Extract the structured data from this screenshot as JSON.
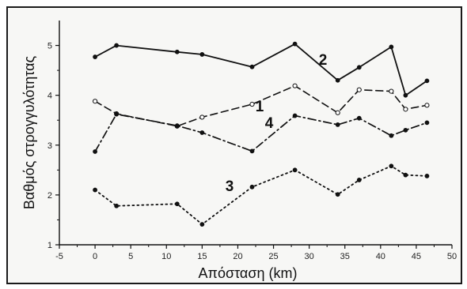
{
  "chart_data": {
    "type": "line",
    "title": "",
    "xlabel": "Απόσταση (km)",
    "ylabel": "Βαθμός στρογγυλότητας",
    "xlim": [
      -5,
      50
    ],
    "ylim": [
      1,
      5.5
    ],
    "xticks": [
      -5,
      0,
      5,
      10,
      15,
      20,
      25,
      30,
      35,
      40,
      45,
      50
    ],
    "yticks": [
      1,
      2,
      3,
      4,
      5
    ],
    "grid": false,
    "legend": "none",
    "series": [
      {
        "name": "2",
        "style": "solid",
        "marker": "filled",
        "x": [
          0,
          3,
          11.5,
          15,
          22,
          28,
          34,
          37,
          41.5,
          43.5,
          46.5
        ],
        "y": [
          4.77,
          5.0,
          4.87,
          4.82,
          4.57,
          5.03,
          4.3,
          4.56,
          4.97,
          4.0,
          4.29
        ]
      },
      {
        "name": "1",
        "style": "dashed",
        "marker": "open",
        "x": [
          0,
          3,
          11.5,
          15,
          22,
          28,
          34,
          37,
          41.5,
          43.5,
          46.5
        ],
        "y": [
          3.88,
          3.63,
          3.38,
          3.56,
          3.82,
          4.19,
          3.65,
          4.11,
          4.08,
          3.72,
          3.8
        ]
      },
      {
        "name": "4",
        "style": "dashdot",
        "marker": "filled",
        "x": [
          0,
          3,
          11.5,
          15,
          22,
          28,
          34,
          37,
          41.5,
          43.5,
          46.5
        ],
        "y": [
          2.87,
          3.62,
          3.39,
          3.25,
          2.88,
          3.59,
          3.41,
          3.54,
          3.19,
          3.3,
          3.45
        ]
      },
      {
        "name": "3",
        "style": "dotted",
        "marker": "filled",
        "x": [
          0,
          3,
          11.5,
          15,
          22,
          28,
          34,
          37,
          41.5,
          43.5,
          46.5
        ],
        "y": [
          2.1,
          1.78,
          1.82,
          1.41,
          2.16,
          2.5,
          2.01,
          2.3,
          2.58,
          2.4,
          2.38
        ]
      }
    ]
  }
}
